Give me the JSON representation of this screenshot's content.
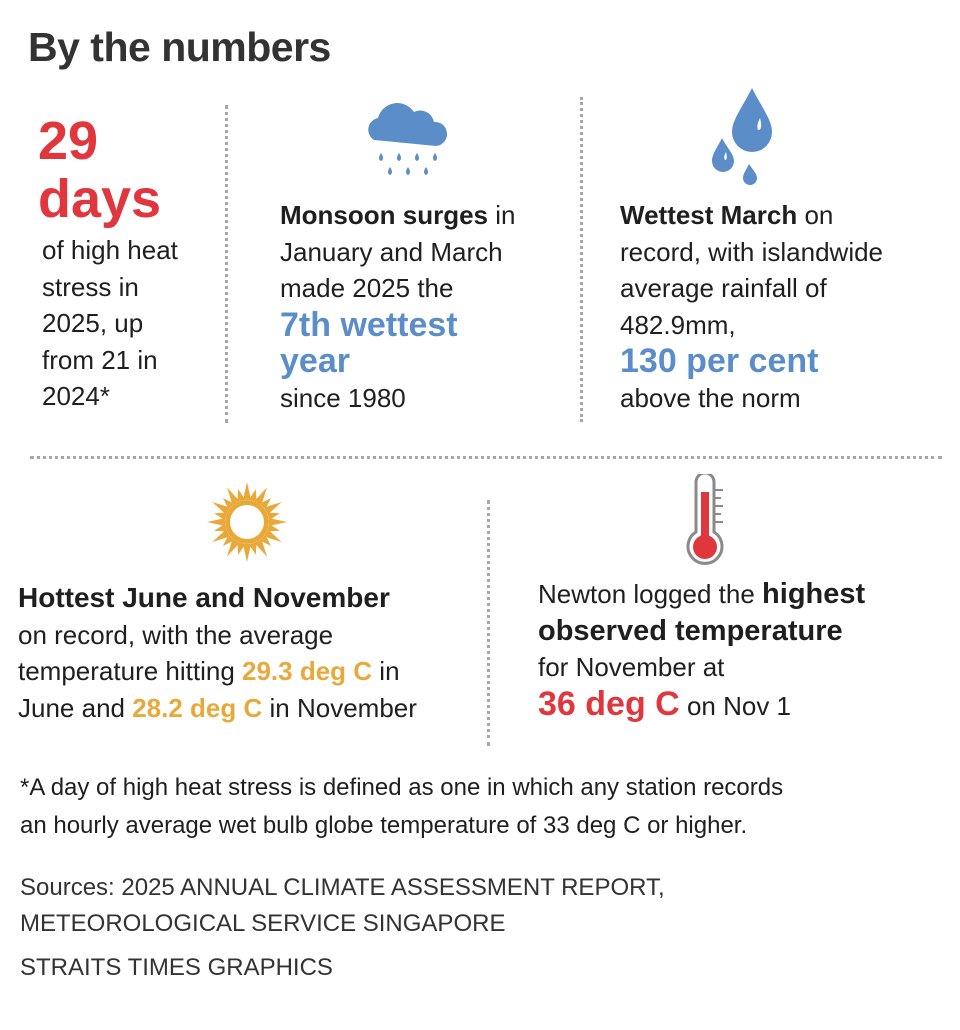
{
  "title": "By the numbers",
  "colors": {
    "red": "#e0363e",
    "blue": "#5b8ec9",
    "orange": "#e9a93a"
  },
  "stat_heat": {
    "number": "29",
    "unit": "days",
    "lines": [
      "of high heat",
      "stress in",
      "2025, up",
      "from 21 in",
      "2024*"
    ]
  },
  "stat_monsoon": {
    "icon": "rain-cloud-icon",
    "bold": "Monsoon surges",
    "after_bold": " in",
    "line2": "January and March",
    "line3": "made 2025 the",
    "highlight_1": "7th wettest",
    "highlight_2": "year",
    "line_last": "since 1980"
  },
  "stat_march": {
    "icon": "water-drops-icon",
    "bold": "Wettest March",
    "after_bold": " on",
    "line2": "record, with islandwide",
    "line3": "average rainfall of",
    "line4": "482.9mm,",
    "highlight": "130 per cent",
    "line_last": "above the norm"
  },
  "stat_hottest": {
    "icon": "sun-icon",
    "bold": "Hottest June and November",
    "line2": "on record, with the average",
    "line3_pre": "temperature hitting ",
    "june_temp": "29.3 deg C",
    "line3_post": " in",
    "line4_pre": "June and ",
    "nov_temp": "28.2 deg C",
    "line4_post": " in November"
  },
  "stat_newton": {
    "icon": "thermometer-icon",
    "line1_pre": "Newton logged the ",
    "bold1": "highest",
    "bold2": "observed temperature",
    "line3": "for November at",
    "temp": "36 deg C",
    "temp_post": " on Nov 1"
  },
  "footnote": [
    "*A day of high heat stress is defined as one in which any station records",
    "an hourly average wet bulb globe temperature of 33 deg C or higher."
  ],
  "sources": [
    "Sources: 2025 ANNUAL CLIMATE ASSESSMENT REPORT,",
    "METEOROLOGICAL SERVICE SINGAPORE",
    "STRAITS TIMES GRAPHICS"
  ]
}
